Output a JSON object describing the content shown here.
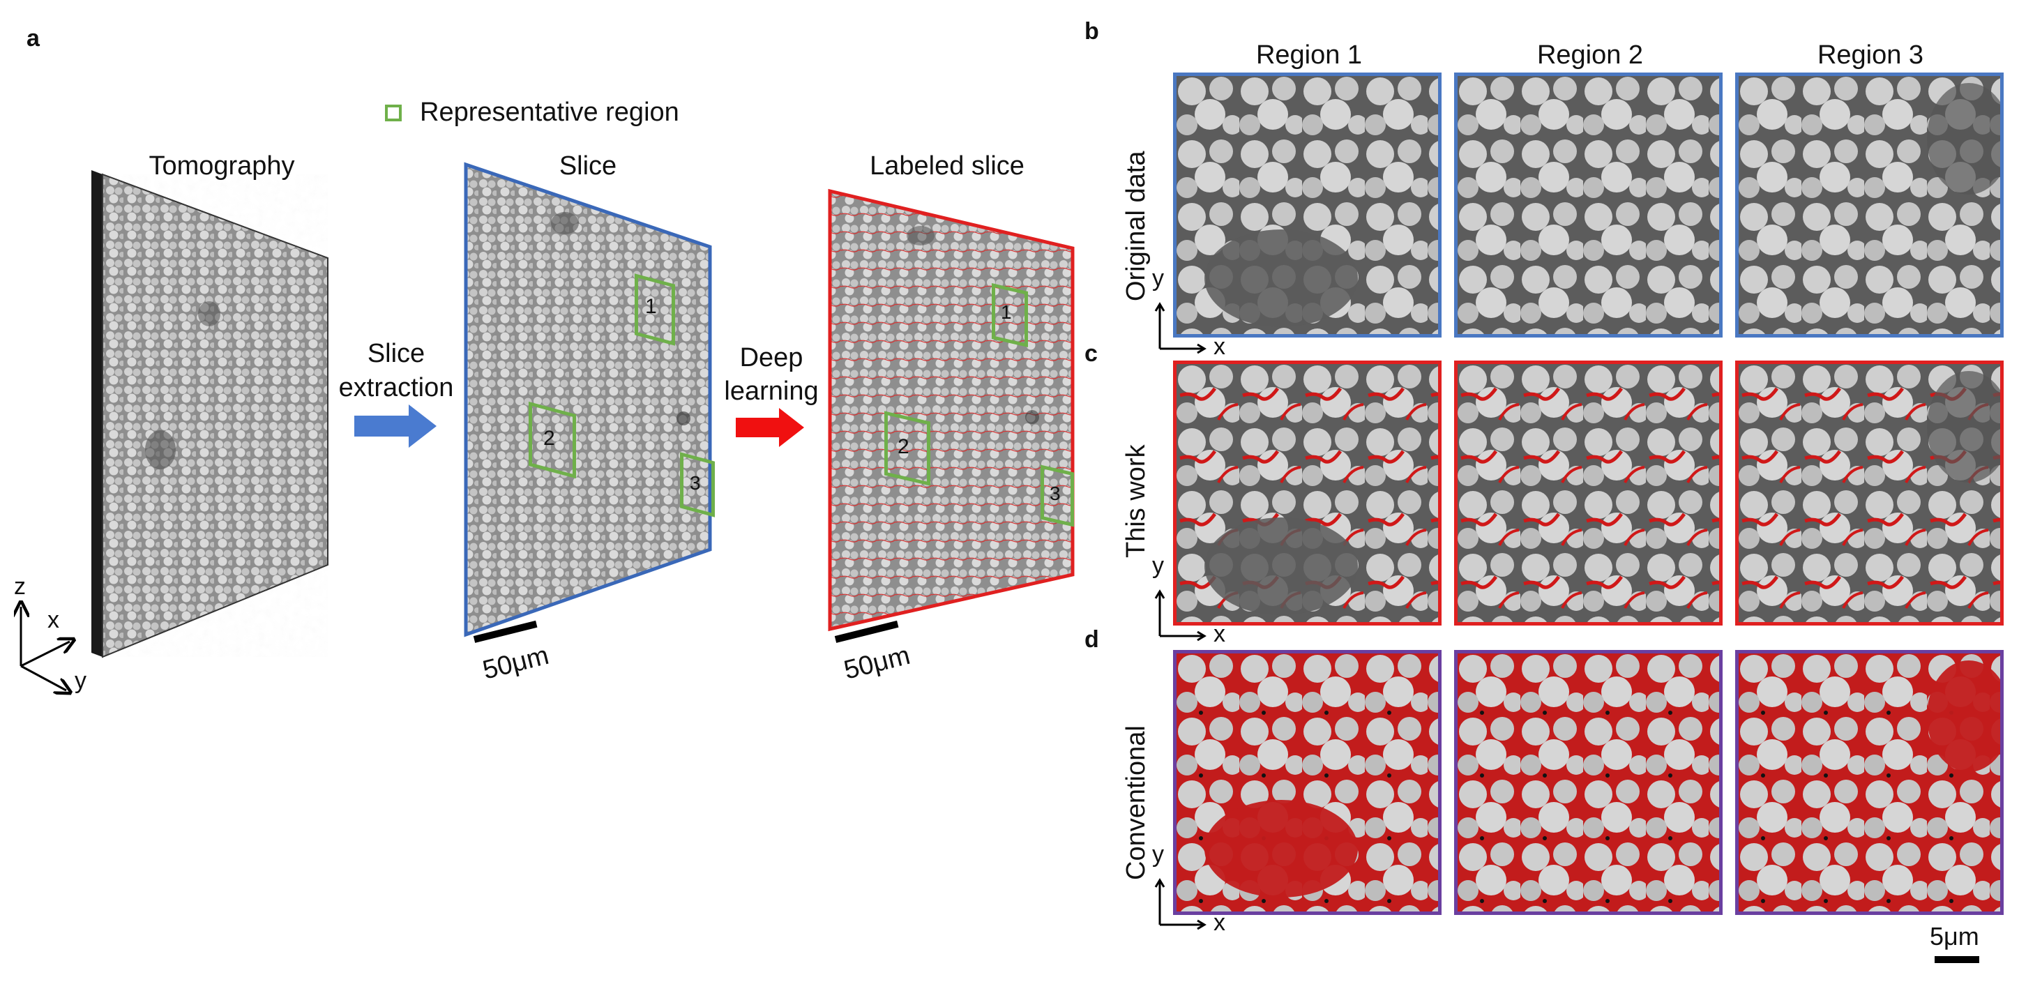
{
  "figure": {
    "panel_a": {
      "letter": "a",
      "legend_text": "Representative region",
      "tomography_label": "Tomography",
      "slice_label": "Slice",
      "labeled_slice_label": "Labeled slice",
      "arrow1_line1": "Slice",
      "arrow1_line2": "extraction",
      "arrow2_line1": "Deep",
      "arrow2_line2": "learning",
      "scale_left": "50μm",
      "scale_right": "50μm",
      "axis_z": "z",
      "axis_x": "x",
      "axis_y": "y",
      "region_labels": [
        "1",
        "2",
        "3"
      ]
    },
    "panel_b": {
      "letter": "b",
      "row_label": "Original data"
    },
    "panel_c": {
      "letter": "c",
      "row_label": "This work"
    },
    "panel_d": {
      "letter": "d",
      "row_label": "Conventional"
    },
    "columns": [
      "Region 1",
      "Region 2",
      "Region 3"
    ],
    "axis_small_x": "x",
    "axis_small_y": "y",
    "scale_bar_small": "5μm",
    "colors": {
      "original_border": "#4a78c2",
      "this_work_border": "#e02020",
      "conventional_border": "#6a3fa0",
      "representative_box": "#6fb04a",
      "arrow_blue": "#4a7bd0",
      "arrow_red": "#f01010",
      "label_red": "#d21a1a"
    }
  }
}
